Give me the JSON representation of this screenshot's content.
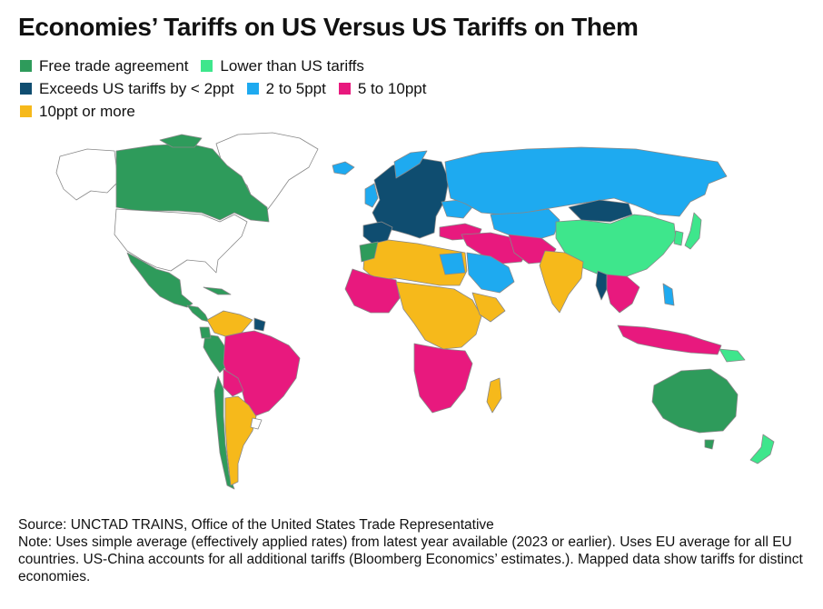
{
  "title": "Economies’ Tariffs on US Versus US Tariffs on Them",
  "legend": [
    {
      "label": "Free trade agreement",
      "color": "#2E9B5B"
    },
    {
      "label": "Lower than US tariffs",
      "color": "#3EE68C"
    },
    {
      "label": "Exceeds US tariffs by < 2ppt",
      "color": "#0F4D70"
    },
    {
      "label": "2 to 5ppt",
      "color": "#1EAAF0"
    },
    {
      "label": "5 to 10ppt",
      "color": "#E8197E"
    },
    {
      "label": "10ppt or more",
      "color": "#F6B91B"
    }
  ],
  "colors": {
    "no_data": "#FFFFFF",
    "border": "#888888"
  },
  "footer": {
    "source": "Source: UNCTAD TRAINS, Office of the United States Trade Representative",
    "note": "Note: Uses simple average (effectively applied rates) from latest year available (2023 or earlier). Uses EU average for all EU countries. US-China accounts for all additional tariffs (Bloomberg Economics’ estimates.). Mapped data show tariffs for distinct economies."
  }
}
